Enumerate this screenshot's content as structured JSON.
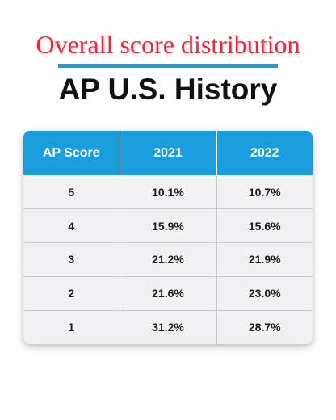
{
  "chart_data": {
    "type": "table",
    "subtitle": "Overall score distribution",
    "title": "AP U.S. History",
    "columns": [
      "AP Score",
      "2021",
      "2022"
    ],
    "rows": [
      [
        "5",
        "10.1%",
        "10.7%"
      ],
      [
        "4",
        "15.9%",
        "15.6%"
      ],
      [
        "3",
        "21.2%",
        "21.9%"
      ],
      [
        "2",
        "21.6%",
        "23.0%"
      ],
      [
        "1",
        "31.2%",
        "28.7%"
      ]
    ]
  },
  "colors": {
    "subtitle": "#e8293f",
    "header_background": "#1a9ddc",
    "accent_rule": "#1a9ddc",
    "row_background": "#f1f1f3"
  }
}
